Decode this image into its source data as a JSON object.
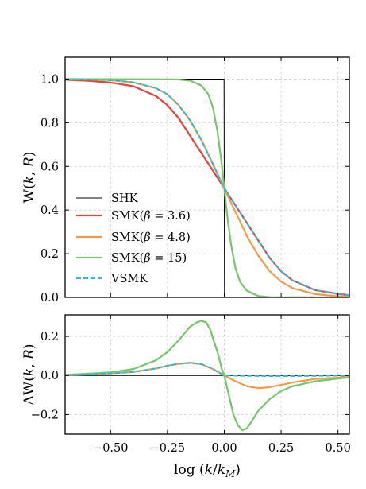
{
  "chart_data": [
    {
      "type": "line",
      "xlim": [
        -0.7,
        0.55
      ],
      "ylim": [
        0.0,
        1.1
      ],
      "ylabel": "W(k, R)",
      "xlabel": "",
      "yticks": [
        0.0,
        0.2,
        0.4,
        0.6,
        0.8,
        1.0
      ],
      "ytick_labels": [
        "0.0",
        "0.2",
        "0.4",
        "0.6",
        "0.8",
        "1.0"
      ],
      "xticks": [
        -0.5,
        -0.25,
        0.0,
        0.25,
        0.5
      ],
      "grid": true,
      "legend_placement": "center-left",
      "series": [
        {
          "name": "SHK",
          "color": "#000000",
          "style": "solid",
          "x": [
            -0.7,
            -0.001,
            0.0,
            0.001,
            0.55
          ],
          "y": [
            1.0,
            1.0,
            0.5,
            0.0,
            0.0
          ]
        },
        {
          "name": "SMK(β = 3.6)",
          "color": "#e8413c",
          "style": "solid",
          "x": [
            -0.7,
            -0.6,
            -0.5,
            -0.4,
            -0.3,
            -0.25,
            -0.2,
            -0.15,
            -0.1,
            -0.05,
            0.0,
            0.05,
            0.1,
            0.15,
            0.2,
            0.25,
            0.3,
            0.4,
            0.5,
            0.55
          ],
          "y": [
            0.997,
            0.992,
            0.984,
            0.967,
            0.922,
            0.88,
            0.82,
            0.74,
            0.66,
            0.58,
            0.5,
            0.42,
            0.34,
            0.26,
            0.18,
            0.12,
            0.078,
            0.033,
            0.016,
            0.01
          ]
        },
        {
          "name": "SMK(β = 4.8)",
          "color": "#f59a46",
          "style": "solid",
          "x": [
            -0.7,
            -0.6,
            -0.5,
            -0.4,
            -0.3,
            -0.25,
            -0.2,
            -0.15,
            -0.1,
            -0.05,
            0.0,
            0.05,
            0.1,
            0.15,
            0.2,
            0.25,
            0.3,
            0.4,
            0.5,
            0.55
          ],
          "y": [
            0.999,
            0.998,
            0.995,
            0.985,
            0.958,
            0.93,
            0.88,
            0.81,
            0.72,
            0.61,
            0.5,
            0.39,
            0.28,
            0.19,
            0.12,
            0.072,
            0.042,
            0.015,
            0.005,
            0.003
          ]
        },
        {
          "name": "SMK(β = 15)",
          "color": "#77c46b",
          "style": "solid",
          "x": [
            -0.7,
            -0.3,
            -0.2,
            -0.15,
            -0.1,
            -0.07,
            -0.05,
            -0.03,
            -0.01,
            0.0,
            0.01,
            0.03,
            0.05,
            0.07,
            0.1,
            0.15,
            0.2,
            0.55
          ],
          "y": [
            1.0,
            0.999,
            0.998,
            0.993,
            0.97,
            0.93,
            0.87,
            0.76,
            0.6,
            0.5,
            0.4,
            0.24,
            0.13,
            0.07,
            0.03,
            0.006,
            0.001,
            0.0
          ]
        },
        {
          "name": "VSMK",
          "color": "#2cb9d6",
          "style": "dashed",
          "x": [
            -0.7,
            -0.6,
            -0.5,
            -0.4,
            -0.3,
            -0.25,
            -0.2,
            -0.15,
            -0.1,
            -0.05,
            0.0,
            0.05,
            0.1,
            0.15,
            0.2,
            0.25,
            0.3,
            0.4,
            0.5,
            0.55
          ],
          "y": [
            0.999,
            0.998,
            0.995,
            0.985,
            0.958,
            0.93,
            0.88,
            0.81,
            0.72,
            0.61,
            0.5,
            0.42,
            0.34,
            0.26,
            0.18,
            0.12,
            0.078,
            0.033,
            0.016,
            0.01
          ]
        }
      ]
    },
    {
      "type": "line",
      "xlim": [
        -0.7,
        0.55
      ],
      "ylim": [
        -0.3,
        0.31
      ],
      "ylabel": "ΔW(k, R)",
      "xlabel": "log (k/k_M)",
      "yticks": [
        -0.2,
        0.0,
        0.2
      ],
      "ytick_labels": [
        "−0.2",
        "0.0",
        "0.2"
      ],
      "xticks": [
        -0.5,
        -0.25,
        0.0,
        0.25,
        0.5
      ],
      "xtick_labels": [
        "−0.50",
        "−0.25",
        "0.00",
        "0.25",
        "0.50"
      ],
      "grid": true,
      "series": [
        {
          "name": "SHK",
          "color": "#000000",
          "style": "solid",
          "x": [
            -0.7,
            0.55
          ],
          "y": [
            0.0,
            0.0
          ]
        },
        {
          "name": "SMK(β = 4.8)",
          "color": "#f59a46",
          "style": "solid",
          "x": [
            -0.7,
            -0.6,
            -0.5,
            -0.4,
            -0.3,
            -0.25,
            -0.2,
            -0.15,
            -0.1,
            -0.05,
            0.0,
            0.05,
            0.1,
            0.15,
            0.2,
            0.25,
            0.3,
            0.4,
            0.5,
            0.55
          ],
          "y": [
            0.002,
            0.006,
            0.011,
            0.018,
            0.036,
            0.05,
            0.06,
            0.065,
            0.058,
            0.033,
            0.0,
            -0.03,
            -0.055,
            -0.065,
            -0.06,
            -0.048,
            -0.036,
            -0.018,
            -0.011,
            -0.007
          ]
        },
        {
          "name": "SMK(β = 15)",
          "color": "#77c46b",
          "style": "solid",
          "x": [
            -0.7,
            -0.5,
            -0.4,
            -0.3,
            -0.25,
            -0.2,
            -0.15,
            -0.12,
            -0.1,
            -0.08,
            -0.06,
            -0.05,
            -0.03,
            -0.01,
            0.0,
            0.02,
            0.04,
            0.06,
            0.08,
            0.1,
            0.12,
            0.15,
            0.2,
            0.25,
            0.3,
            0.4,
            0.5,
            0.55
          ],
          "y": [
            0.003,
            0.016,
            0.033,
            0.078,
            0.12,
            0.18,
            0.25,
            0.272,
            0.28,
            0.272,
            0.23,
            0.19,
            0.12,
            0.03,
            0.0,
            -0.1,
            -0.2,
            -0.255,
            -0.28,
            -0.27,
            -0.235,
            -0.18,
            -0.12,
            -0.08,
            -0.055,
            -0.03,
            -0.016,
            -0.01
          ]
        },
        {
          "name": "VSMK",
          "color": "#2cb9d6",
          "style": "dashed",
          "x": [
            -0.7,
            -0.6,
            -0.5,
            -0.4,
            -0.3,
            -0.25,
            -0.2,
            -0.15,
            -0.1,
            -0.05,
            0.0,
            0.05,
            0.1,
            0.2,
            0.3,
            0.4,
            0.5,
            0.55
          ],
          "y": [
            0.002,
            0.006,
            0.011,
            0.018,
            0.036,
            0.05,
            0.06,
            0.065,
            0.058,
            0.033,
            0.0,
            -0.001,
            -0.002,
            -0.003,
            -0.003,
            -0.002,
            -0.001,
            -0.001
          ]
        }
      ]
    }
  ]
}
